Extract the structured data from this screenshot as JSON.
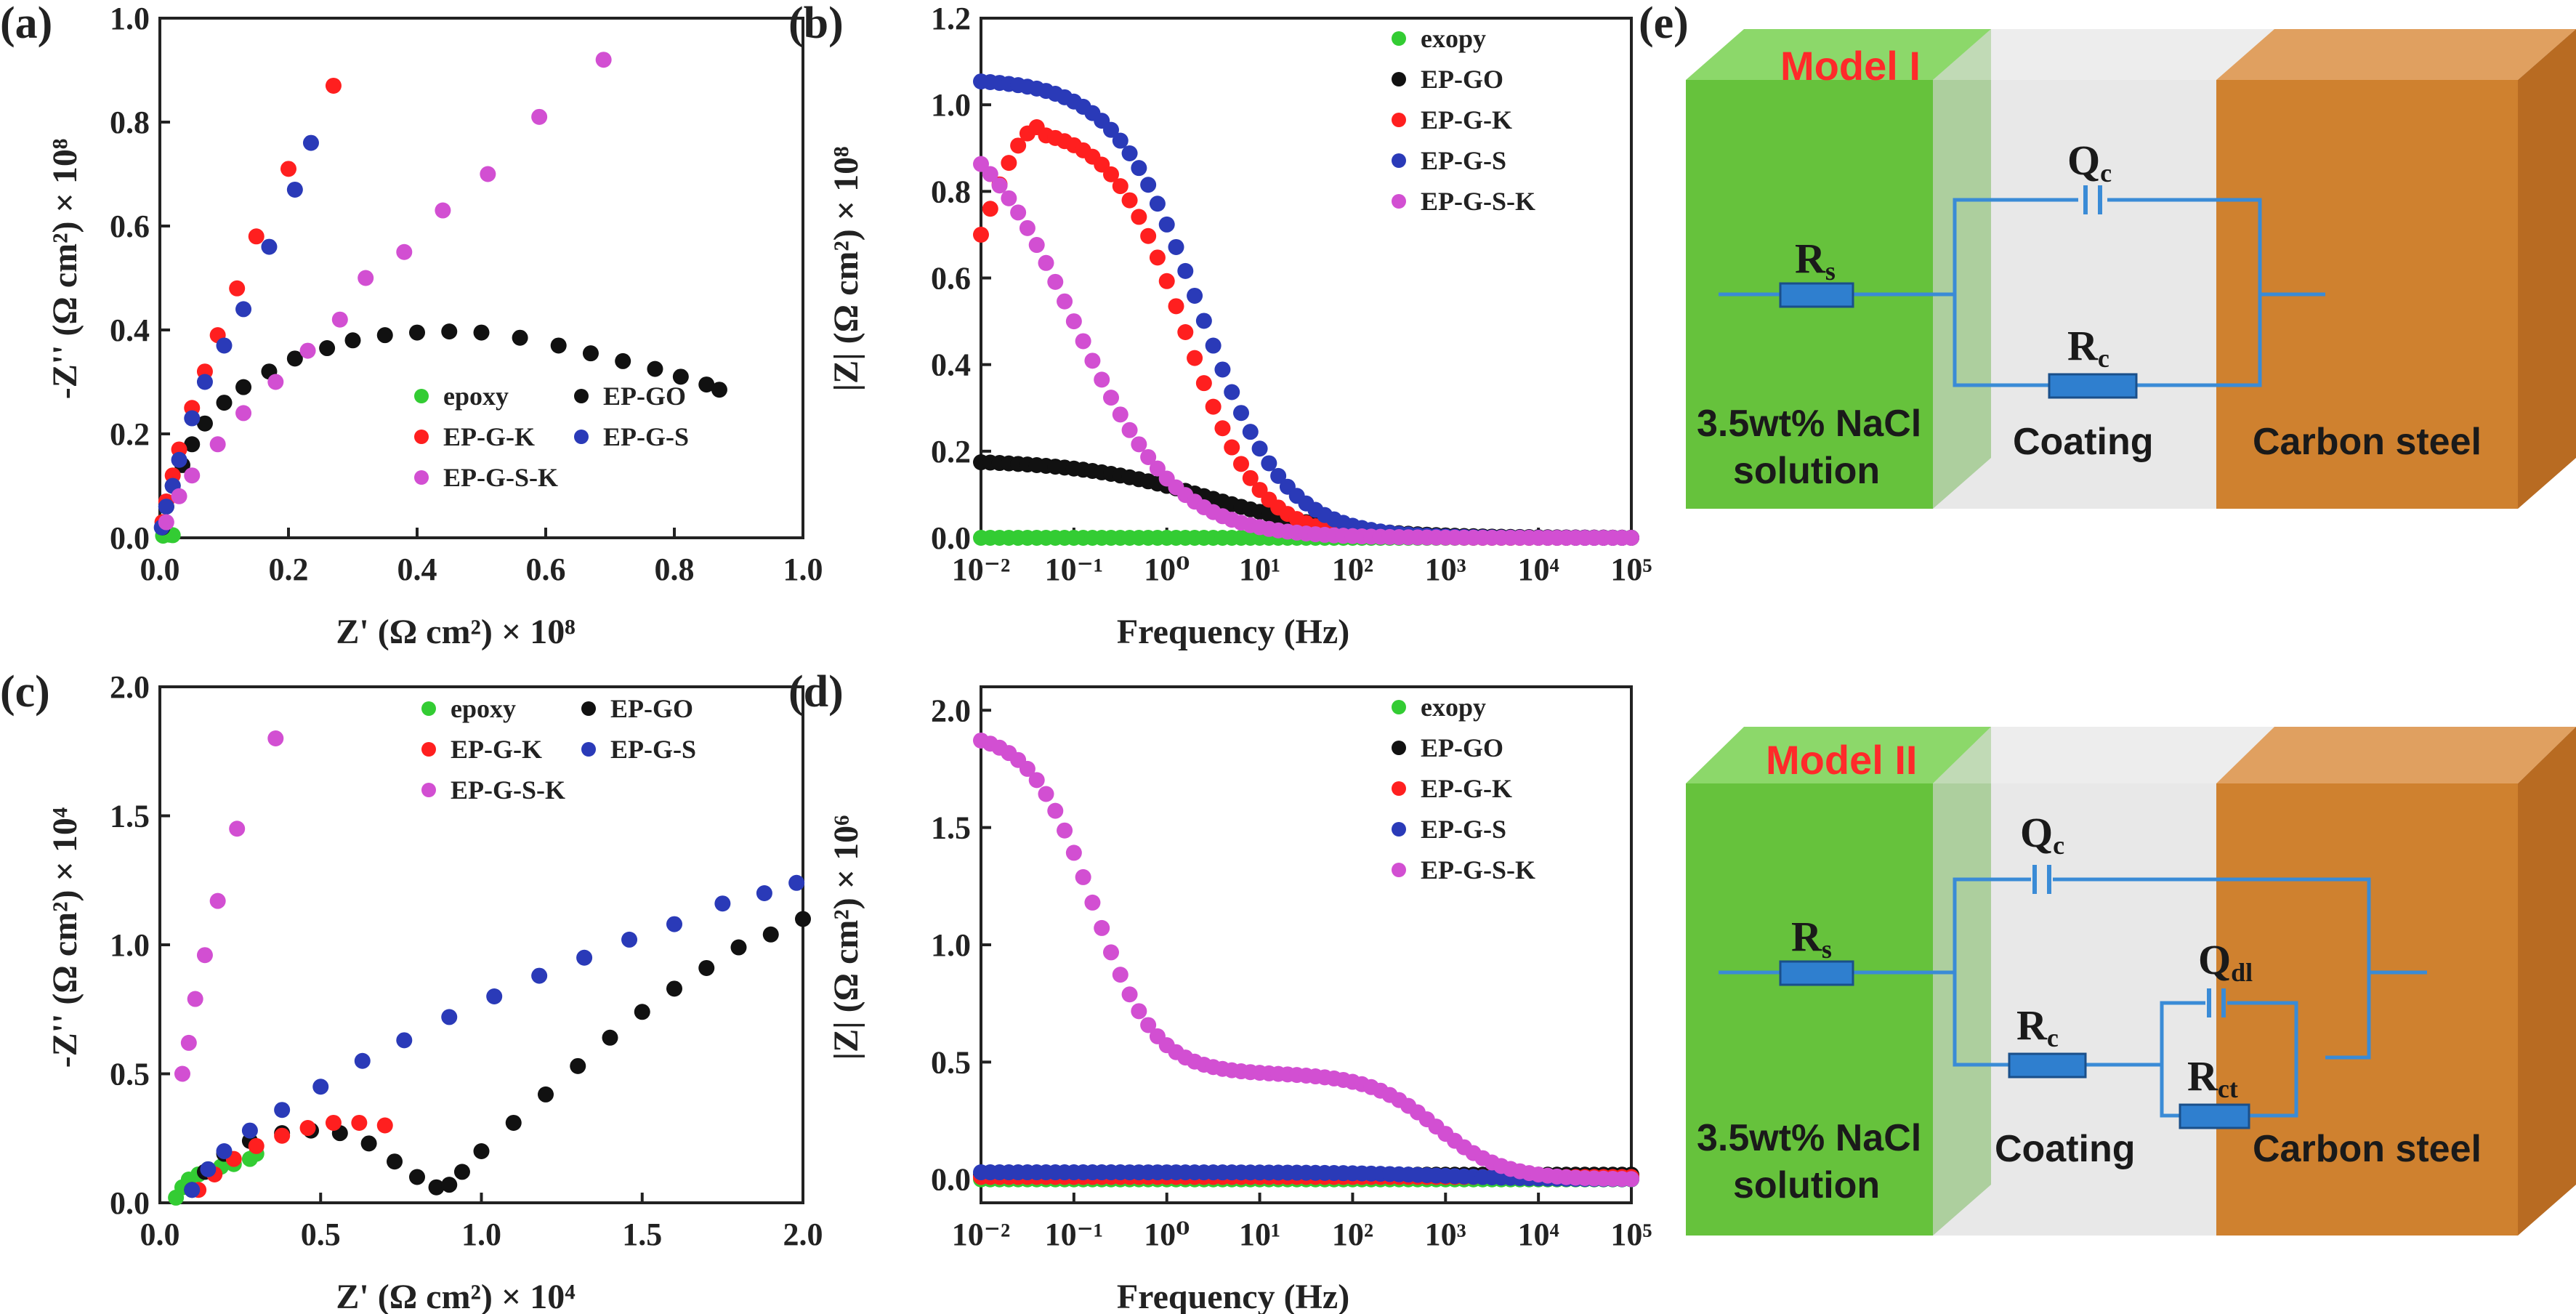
{
  "chart_data": [
    {
      "panel": "(a)",
      "type": "scatter",
      "xlabel": "Z' (Ω cm²) × 10⁸",
      "ylabel": "-Z'' (Ω cm²) × 10⁸",
      "xlim": [
        0,
        1.0
      ],
      "ylim": [
        0,
        1.0
      ],
      "xticks": [
        "0.0",
        "0.2",
        "0.4",
        "0.6",
        "0.8",
        "1.0"
      ],
      "yticks": [
        "0.0",
        "0.2",
        "0.4",
        "0.6",
        "0.8",
        "1.0"
      ],
      "legend": {
        "position": "bottom-right",
        "columns": 2
      },
      "series": [
        {
          "name": "epoxy",
          "color": "#33cc33",
          "points": [
            [
              0.005,
              0.004
            ],
            [
              0.01,
              0.008
            ],
            [
              0.015,
              0.006
            ],
            [
              0.02,
              0.005
            ]
          ]
        },
        {
          "name": "EP-GO",
          "color": "#111111",
          "points": [
            [
              0.004,
              0.02
            ],
            [
              0.01,
              0.06
            ],
            [
              0.02,
              0.1
            ],
            [
              0.035,
              0.14
            ],
            [
              0.05,
              0.18
            ],
            [
              0.07,
              0.22
            ],
            [
              0.1,
              0.26
            ],
            [
              0.13,
              0.29
            ],
            [
              0.17,
              0.32
            ],
            [
              0.21,
              0.345
            ],
            [
              0.26,
              0.365
            ],
            [
              0.3,
              0.38
            ],
            [
              0.35,
              0.39
            ],
            [
              0.4,
              0.395
            ],
            [
              0.45,
              0.397
            ],
            [
              0.5,
              0.395
            ],
            [
              0.56,
              0.385
            ],
            [
              0.62,
              0.37
            ],
            [
              0.67,
              0.355
            ],
            [
              0.72,
              0.34
            ],
            [
              0.77,
              0.325
            ],
            [
              0.81,
              0.31
            ],
            [
              0.85,
              0.295
            ],
            [
              0.87,
              0.285
            ]
          ]
        },
        {
          "name": "EP-G-K",
          "color": "#ff1f1f",
          "points": [
            [
              0.004,
              0.03
            ],
            [
              0.01,
              0.07
            ],
            [
              0.02,
              0.12
            ],
            [
              0.03,
              0.17
            ],
            [
              0.05,
              0.25
            ],
            [
              0.07,
              0.32
            ],
            [
              0.09,
              0.39
            ],
            [
              0.12,
              0.48
            ],
            [
              0.15,
              0.58
            ],
            [
              0.2,
              0.71
            ],
            [
              0.27,
              0.87
            ]
          ]
        },
        {
          "name": "EP-G-S",
          "color": "#2a3ab8",
          "points": [
            [
              0.003,
              0.02
            ],
            [
              0.01,
              0.06
            ],
            [
              0.02,
              0.1
            ],
            [
              0.03,
              0.15
            ],
            [
              0.05,
              0.23
            ],
            [
              0.07,
              0.3
            ],
            [
              0.1,
              0.37
            ],
            [
              0.13,
              0.44
            ],
            [
              0.17,
              0.56
            ],
            [
              0.21,
              0.67
            ],
            [
              0.235,
              0.76
            ]
          ]
        },
        {
          "name": "EP-G-S-K",
          "color": "#d24fd2",
          "points": [
            [
              0.01,
              0.03
            ],
            [
              0.03,
              0.08
            ],
            [
              0.05,
              0.12
            ],
            [
              0.09,
              0.18
            ],
            [
              0.13,
              0.24
            ],
            [
              0.18,
              0.3
            ],
            [
              0.23,
              0.36
            ],
            [
              0.28,
              0.42
            ],
            [
              0.32,
              0.5
            ],
            [
              0.38,
              0.55
            ],
            [
              0.44,
              0.63
            ],
            [
              0.51,
              0.7
            ],
            [
              0.59,
              0.81
            ],
            [
              0.69,
              0.92
            ]
          ]
        }
      ]
    },
    {
      "panel": "(b)",
      "type": "scatter",
      "xscale": "log",
      "xlabel": "Frequency (Hz)",
      "ylabel": "|Z| (Ω cm²) × 10⁸",
      "xlim_exp": [
        -2,
        5
      ],
      "ylim": [
        0,
        1.2
      ],
      "xticks": [
        "10⁻²",
        "10⁻¹",
        "10⁰",
        "10¹",
        "10²",
        "10³",
        "10⁴",
        "10⁵"
      ],
      "yticks": [
        "0.0",
        "0.2",
        "0.4",
        "0.6",
        "0.8",
        "1.0",
        "1.2"
      ],
      "legend": {
        "position": "top-right",
        "columns": 1
      },
      "series": [
        {
          "name": "exopy",
          "color": "#33cc33",
          "model": "flat",
          "params": {
            "value": 0.0
          }
        },
        {
          "name": "EP-GO",
          "color": "#111111",
          "model": "decay",
          "params": {
            "low": 0.18,
            "fc_exp": 0.5,
            "n": 0.6
          }
        },
        {
          "name": "EP-G-K",
          "color": "#ff1f1f",
          "model": "hump",
          "params": {
            "start": 0.7,
            "peak": 0.95,
            "peak_exp": -1.35,
            "fc_exp": 0.2,
            "n": 1.1
          }
        },
        {
          "name": "EP-G-S",
          "color": "#2a3ab8",
          "model": "decay",
          "params": {
            "low": 1.06,
            "fc_exp": 0.35,
            "n": 0.95
          }
        },
        {
          "name": "EP-G-S-K",
          "color": "#d24fd2",
          "model": "decay",
          "params": {
            "low": 1.0,
            "fc_exp": -1.0,
            "n": 0.8
          }
        }
      ]
    },
    {
      "panel": "(c)",
      "type": "scatter",
      "xlabel": "Z' (Ω cm²) × 10⁴",
      "ylabel": "-Z'' (Ω cm²) × 10⁴",
      "xlim": [
        0,
        2.0
      ],
      "ylim": [
        0,
        2.0
      ],
      "xticks": [
        "0.0",
        "0.5",
        "1.0",
        "1.5",
        "2.0"
      ],
      "yticks": [
        "0.0",
        "0.5",
        "1.0",
        "1.5",
        "2.0"
      ],
      "legend": {
        "position": "top-right",
        "columns": 2
      },
      "series": [
        {
          "name": "epoxy",
          "color": "#33cc33",
          "points": [
            [
              0.05,
              0.02
            ],
            [
              0.07,
              0.06
            ],
            [
              0.09,
              0.09
            ],
            [
              0.12,
              0.11
            ],
            [
              0.15,
              0.13
            ],
            [
              0.19,
              0.14
            ],
            [
              0.23,
              0.15
            ],
            [
              0.28,
              0.17
            ],
            [
              0.3,
              0.19
            ]
          ]
        },
        {
          "name": "EP-GO",
          "color": "#111111",
          "points": [
            [
              0.1,
              0.05
            ],
            [
              0.14,
              0.12
            ],
            [
              0.2,
              0.19
            ],
            [
              0.28,
              0.24
            ],
            [
              0.38,
              0.27
            ],
            [
              0.47,
              0.28
            ],
            [
              0.56,
              0.27
            ],
            [
              0.65,
              0.23
            ],
            [
              0.73,
              0.16
            ],
            [
              0.8,
              0.1
            ],
            [
              0.86,
              0.06
            ],
            [
              0.9,
              0.07
            ],
            [
              0.94,
              0.12
            ],
            [
              1.0,
              0.2
            ],
            [
              1.1,
              0.31
            ],
            [
              1.2,
              0.42
            ],
            [
              1.3,
              0.53
            ],
            [
              1.4,
              0.64
            ],
            [
              1.5,
              0.74
            ],
            [
              1.6,
              0.83
            ],
            [
              1.7,
              0.91
            ],
            [
              1.8,
              0.99
            ],
            [
              1.9,
              1.04
            ],
            [
              2.0,
              1.1
            ]
          ]
        },
        {
          "name": "EP-G-K",
          "color": "#ff1f1f",
          "points": [
            [
              0.12,
              0.05
            ],
            [
              0.17,
              0.11
            ],
            [
              0.23,
              0.17
            ],
            [
              0.3,
              0.22
            ],
            [
              0.38,
              0.26
            ],
            [
              0.46,
              0.29
            ],
            [
              0.54,
              0.31
            ],
            [
              0.62,
              0.31
            ],
            [
              0.7,
              0.3
            ]
          ]
        },
        {
          "name": "EP-G-S",
          "color": "#2a3ab8",
          "points": [
            [
              0.1,
              0.05
            ],
            [
              0.15,
              0.13
            ],
            [
              0.2,
              0.2
            ],
            [
              0.28,
              0.28
            ],
            [
              0.38,
              0.36
            ],
            [
              0.5,
              0.45
            ],
            [
              0.63,
              0.55
            ],
            [
              0.76,
              0.63
            ],
            [
              0.9,
              0.72
            ],
            [
              1.04,
              0.8
            ],
            [
              1.18,
              0.88
            ],
            [
              1.32,
              0.95
            ],
            [
              1.46,
              1.02
            ],
            [
              1.6,
              1.08
            ],
            [
              1.75,
              1.16
            ],
            [
              1.88,
              1.2
            ],
            [
              1.98,
              1.24
            ]
          ]
        },
        {
          "name": "EP-G-S-K",
          "color": "#d24fd2",
          "points": [
            [
              0.07,
              0.5
            ],
            [
              0.09,
              0.62
            ],
            [
              0.11,
              0.79
            ],
            [
              0.14,
              0.96
            ],
            [
              0.18,
              1.17
            ],
            [
              0.24,
              1.45
            ],
            [
              0.36,
              1.8
            ]
          ]
        }
      ]
    },
    {
      "panel": "(d)",
      "type": "scatter",
      "xscale": "log",
      "xlabel": "Frequency (Hz)",
      "ylabel": "|Z| (Ω cm²) × 10⁶",
      "xlim_exp": [
        -2,
        5
      ],
      "ylim": [
        -0.1,
        2.1
      ],
      "xticks": [
        "10⁻²",
        "10⁻¹",
        "10⁰",
        "10¹",
        "10²",
        "10³",
        "10⁴",
        "10⁵"
      ],
      "yticks": [
        "0.0",
        "0.5",
        "1.0",
        "1.5",
        "2.0"
      ],
      "legend": {
        "position": "top-right",
        "columns": 1
      },
      "series": [
        {
          "name": "exopy",
          "color": "#33cc33",
          "model": "flat",
          "params": {
            "value": 0.0
          }
        },
        {
          "name": "EP-GO",
          "color": "#111111",
          "model": "flat",
          "params": {
            "value": 0.02
          }
        },
        {
          "name": "EP-G-K",
          "color": "#ff1f1f",
          "model": "flat",
          "params": {
            "value": 0.01
          }
        },
        {
          "name": "EP-G-S",
          "color": "#2a3ab8",
          "model": "decay",
          "params": {
            "low": 0.03,
            "fc_exp": 3.0,
            "n": 0.8
          }
        },
        {
          "name": "EP-G-S-K",
          "color": "#d24fd2",
          "model": "twostep",
          "params": {
            "a": 1.46,
            "f1_exp": -0.8,
            "n1": 1.3,
            "b": 0.45,
            "f2_exp": 2.9,
            "n2": 1.2
          }
        }
      ]
    }
  ],
  "panels": {
    "a": "(a)",
    "b": "(b)",
    "c": "(c)",
    "d": "(d)",
    "e": "(e)"
  },
  "models": {
    "model1": {
      "title": "Model I",
      "solution_line1": "3.5wt% NaCl",
      "solution_line2": "solution",
      "coating": "Coating",
      "steel": "Carbon steel",
      "Rs": "R",
      "Rs_sub": "s",
      "Rc": "R",
      "Rc_sub": "c",
      "Qc": "Q",
      "Qc_sub": "c"
    },
    "model2": {
      "title": "Model II",
      "solution_line1": "3.5wt% NaCl",
      "solution_line2": "solution",
      "coating": "Coating",
      "steel": "Carbon steel",
      "Rs": "R",
      "Rs_sub": "s",
      "Rc": "R",
      "Rc_sub": "c",
      "Qc": "Q",
      "Qc_sub": "c",
      "Qdl": "Q",
      "Qdl_sub": "dl",
      "Rct": "R",
      "Rct_sub": "ct"
    }
  }
}
